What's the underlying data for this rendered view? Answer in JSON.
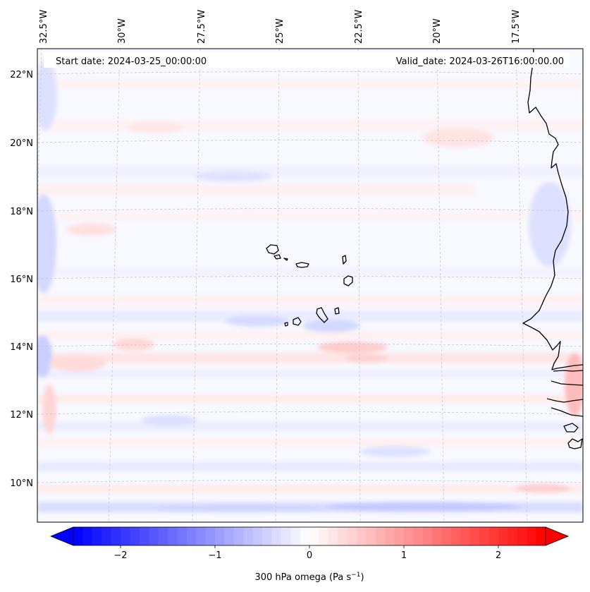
{
  "header": {
    "start_date": "Start date: 2024-03-25_00:00:00",
    "valid_date": "Valid_date: 2024-03-26T16:00:00.00"
  },
  "map": {
    "field": "300 hPa omega",
    "lon_ticks": [
      "32.5°W",
      "30°W",
      "27.5°W",
      "25°W",
      "22.5°W",
      "20°W",
      "17.5°W"
    ],
    "lat_ticks": [
      "22°N",
      "20°N",
      "18°N",
      "16°N",
      "14°N",
      "12°N",
      "10°N"
    ],
    "gridlines": true,
    "colormap": "bwr",
    "colors": {
      "negative": "#0000ff",
      "zero": "#ffffff",
      "positive": "#ff0000",
      "coastline": "#000000"
    }
  },
  "colorbar": {
    "ticks": [
      "−2",
      "−1",
      "0",
      "1",
      "2"
    ],
    "tick_values": [
      -2,
      -1,
      0,
      1,
      2
    ],
    "range": [
      -2.5,
      2.5
    ],
    "extend": "both",
    "label": "300 hPa omega (Pa s",
    "label_sup": "−1",
    "label_end": ")"
  }
}
